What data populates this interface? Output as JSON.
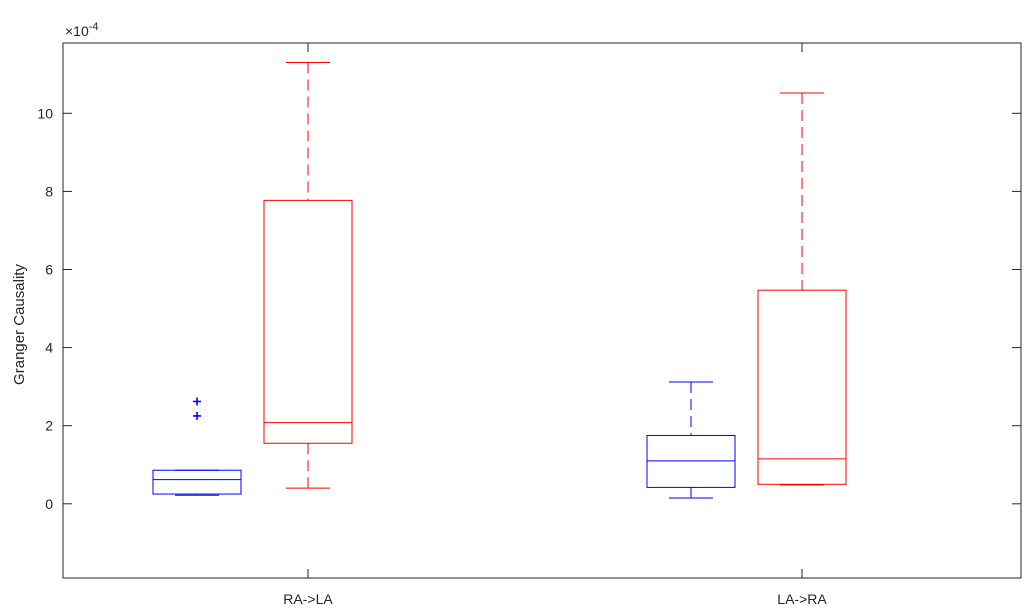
{
  "chart_data": {
    "type": "box",
    "ylabel": "Granger Causality",
    "y_exponent_label": "×10",
    "y_exponent_value": "-4",
    "y_scale": 0.0001,
    "ylim": [
      -1.9,
      11.8
    ],
    "yticks": [
      0,
      2,
      4,
      6,
      8,
      10
    ],
    "ytick_labels": [
      "0",
      "2",
      "4",
      "6",
      "8",
      "10"
    ],
    "categories": [
      "RA->LA",
      "LA->RA"
    ],
    "grid": false,
    "legend": "none",
    "series": [
      {
        "color": "#0000ff",
        "boxes": [
          {
            "category": "RA->LA",
            "whisker_low": 0.22,
            "q1": 0.25,
            "median": 0.62,
            "q3": 0.86,
            "whisker_high": 0.86,
            "outliers": [
              2.25,
              2.62
            ]
          },
          {
            "category": "LA->RA",
            "whisker_low": 0.15,
            "q1": 0.42,
            "median": 1.1,
            "q3": 1.75,
            "whisker_high": 3.12,
            "outliers": []
          }
        ]
      },
      {
        "color": "#ff0000",
        "boxes": [
          {
            "category": "RA->LA",
            "whisker_low": 0.4,
            "q1": 1.55,
            "median": 2.08,
            "q3": 7.77,
            "whisker_high": 11.3,
            "outliers": []
          },
          {
            "category": "LA->RA",
            "whisker_low": 0.48,
            "q1": 0.5,
            "median": 1.15,
            "q3": 5.47,
            "whisker_high": 10.52,
            "outliers": []
          }
        ]
      }
    ]
  }
}
